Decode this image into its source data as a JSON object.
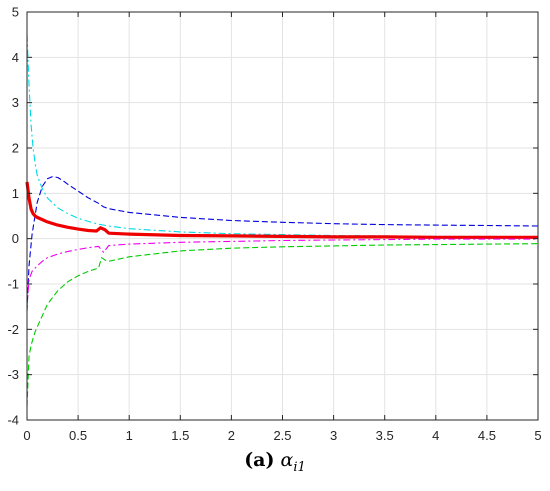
{
  "chart_data": {
    "type": "line",
    "xlim": [
      0,
      5
    ],
    "ylim": [
      -4,
      5
    ],
    "x_ticks": [
      "0",
      "0.5",
      "1",
      "1.5",
      "2",
      "2.5",
      "3",
      "3.5",
      "4",
      "4.5",
      "5"
    ],
    "y_ticks": [
      "-4",
      "-3",
      "-2",
      "-1",
      "0",
      "1",
      "2",
      "3",
      "4",
      "5"
    ],
    "grid": true,
    "series": [
      {
        "color": "#0000dd",
        "style": "dashed",
        "width": 1.1,
        "x": [
          0,
          0.02,
          0.05,
          0.1,
          0.15,
          0.2,
          0.25,
          0.3,
          0.35,
          0.4,
          0.5,
          0.6,
          0.7,
          0.75,
          0.8,
          1,
          1.5,
          2,
          2.5,
          3,
          3.5,
          4,
          4.5,
          5
        ],
        "y": [
          -1.6,
          -0.6,
          0.1,
          0.8,
          1.15,
          1.32,
          1.37,
          1.35,
          1.28,
          1.2,
          1.05,
          0.9,
          0.78,
          0.7,
          0.66,
          0.58,
          0.47,
          0.4,
          0.36,
          0.33,
          0.31,
          0.3,
          0.29,
          0.28
        ]
      },
      {
        "color": "#00d8e8",
        "style": "dashdot",
        "width": 1.1,
        "x": [
          0,
          0.02,
          0.04,
          0.06,
          0.08,
          0.1,
          0.15,
          0.2,
          0.3,
          0.4,
          0.5,
          0.6,
          0.7,
          0.8,
          1,
          1.5,
          2,
          2.5,
          3,
          3.5,
          4,
          4.5,
          5
        ],
        "y": [
          4.5,
          3.4,
          2.5,
          2.0,
          1.65,
          1.4,
          1.1,
          0.9,
          0.68,
          0.55,
          0.45,
          0.38,
          0.32,
          0.28,
          0.22,
          0.15,
          0.11,
          0.09,
          0.07,
          0.06,
          0.05,
          0.05,
          0.04
        ]
      },
      {
        "color": "#ee0000",
        "style": "solid",
        "width": 3.2,
        "x": [
          0,
          0.02,
          0.04,
          0.06,
          0.08,
          0.1,
          0.15,
          0.2,
          0.3,
          0.4,
          0.5,
          0.6,
          0.68,
          0.72,
          0.76,
          0.8,
          1,
          1.5,
          2,
          2.5,
          3,
          3.5,
          4,
          4.5,
          5
        ],
        "y": [
          1.25,
          0.9,
          0.65,
          0.55,
          0.5,
          0.47,
          0.42,
          0.37,
          0.3,
          0.25,
          0.21,
          0.18,
          0.17,
          0.24,
          0.2,
          0.12,
          0.1,
          0.07,
          0.06,
          0.05,
          0.04,
          0.04,
          0.03,
          0.03,
          0.03
        ]
      },
      {
        "color": "#ee00ee",
        "style": "dashdot",
        "width": 1.1,
        "x": [
          0,
          0.02,
          0.05,
          0.1,
          0.15,
          0.2,
          0.3,
          0.4,
          0.5,
          0.6,
          0.7,
          0.75,
          0.8,
          1,
          1.5,
          2,
          2.5,
          3,
          3.5,
          4,
          4.5,
          5
        ],
        "y": [
          -1.5,
          -0.9,
          -0.72,
          -0.6,
          -0.5,
          -0.42,
          -0.34,
          -0.28,
          -0.24,
          -0.2,
          -0.17,
          -0.3,
          -0.15,
          -0.12,
          -0.08,
          -0.06,
          -0.04,
          -0.03,
          -0.02,
          -0.01,
          -0.01,
          -0.01
        ]
      },
      {
        "color": "#00cc00",
        "style": "dashed",
        "width": 1.1,
        "x": [
          0,
          0.02,
          0.04,
          0.06,
          0.08,
          0.1,
          0.15,
          0.2,
          0.3,
          0.4,
          0.5,
          0.6,
          0.7,
          0.73,
          0.77,
          0.8,
          1,
          1.5,
          2,
          2.5,
          3,
          3.5,
          4,
          4.5,
          5
        ],
        "y": [
          -3.7,
          -2.6,
          -2.35,
          -2.2,
          -2.05,
          -1.95,
          -1.7,
          -1.45,
          -1.15,
          -0.95,
          -0.82,
          -0.72,
          -0.65,
          -0.42,
          -0.48,
          -0.5,
          -0.4,
          -0.27,
          -0.21,
          -0.18,
          -0.16,
          -0.14,
          -0.13,
          -0.12,
          -0.11
        ]
      }
    ]
  },
  "caption": {
    "label": "(a)",
    "symbol": "α",
    "subscript": "i1"
  }
}
